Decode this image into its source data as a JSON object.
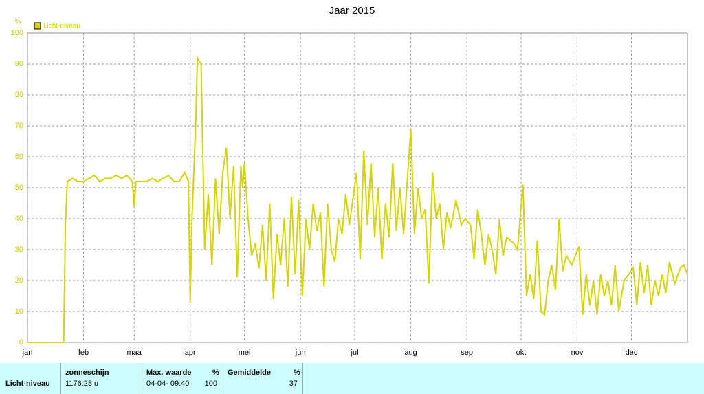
{
  "chart_data": {
    "type": "line",
    "title": "Jaar 2015",
    "y_unit_label": "%",
    "x": [
      0,
      20,
      21,
      22,
      25,
      28,
      31,
      34,
      37,
      40,
      43,
      46,
      49,
      52,
      55,
      58,
      59,
      60,
      63,
      66,
      69,
      72,
      75,
      78,
      81,
      84,
      87,
      89,
      90,
      91,
      93,
      94,
      96,
      98,
      100,
      102,
      104,
      106,
      108,
      110,
      112,
      114,
      116,
      118,
      119,
      120,
      122,
      124,
      126,
      128,
      130,
      132,
      134,
      136,
      138,
      140,
      142,
      144,
      146,
      148,
      150,
      152,
      154,
      156,
      158,
      160,
      162,
      164,
      166,
      168,
      170,
      172,
      174,
      176,
      178,
      182,
      184,
      186,
      188,
      190,
      192,
      194,
      196,
      198,
      200,
      202,
      204,
      206,
      208,
      212,
      214,
      216,
      218,
      220,
      222,
      224,
      226,
      228,
      230,
      232,
      234,
      237,
      240,
      242,
      245,
      247,
      249,
      251,
      253,
      255,
      257,
      259,
      261,
      263,
      265,
      269,
      271,
      274,
      276,
      278,
      280,
      282,
      284,
      286,
      288,
      290,
      292,
      294,
      296,
      298,
      301,
      305,
      307,
      309,
      311,
      313,
      315,
      317,
      319,
      321,
      323,
      325,
      327,
      330,
      335,
      337,
      339,
      341,
      343,
      345,
      347,
      349,
      351,
      353,
      355,
      358,
      361,
      363,
      365
    ],
    "series": [
      {
        "name": "Licht-niveau",
        "color": "#d4d400",
        "values": [
          0,
          0,
          38,
          52,
          53,
          52,
          52,
          53,
          54,
          52,
          53,
          53,
          54,
          53,
          54,
          52,
          44,
          52,
          52,
          52,
          53,
          52,
          53,
          54,
          52,
          52,
          55,
          52,
          13,
          40,
          70,
          92,
          90,
          30,
          48,
          25,
          53,
          35,
          55,
          63,
          40,
          57,
          21,
          57,
          50,
          58,
          40,
          28,
          32,
          24,
          38,
          20,
          45,
          14,
          35,
          25,
          40,
          18,
          47,
          22,
          46,
          15,
          40,
          30,
          45,
          36,
          42,
          18,
          45,
          30,
          26,
          40,
          35,
          48,
          38,
          55,
          27,
          62,
          38,
          58,
          34,
          50,
          27,
          45,
          34,
          58,
          36,
          50,
          35,
          69,
          35,
          50,
          40,
          43,
          19,
          55,
          40,
          45,
          30,
          42,
          37,
          46,
          38,
          40,
          38,
          27,
          43,
          35,
          25,
          35,
          30,
          22,
          40,
          28,
          34,
          32,
          30,
          51,
          15,
          22,
          14,
          33,
          10,
          9,
          20,
          25,
          17,
          40,
          23,
          28,
          25,
          31,
          9,
          22,
          12,
          20,
          9,
          22,
          15,
          20,
          12,
          25,
          10,
          20,
          24,
          12,
          26,
          16,
          25,
          12,
          20,
          15,
          22,
          16,
          26,
          19,
          24,
          25,
          22
        ]
      }
    ],
    "xlim": [
      0,
      365
    ],
    "xticks": [
      {
        "value": 0,
        "label": "jan"
      },
      {
        "value": 31,
        "label": "feb"
      },
      {
        "value": 59,
        "label": "maa"
      },
      {
        "value": 90,
        "label": "apr"
      },
      {
        "value": 120,
        "label": "mei"
      },
      {
        "value": 151,
        "label": "jun"
      },
      {
        "value": 181,
        "label": "jul"
      },
      {
        "value": 212,
        "label": "aug"
      },
      {
        "value": 243,
        "label": "sep"
      },
      {
        "value": 273,
        "label": "okt"
      },
      {
        "value": 304,
        "label": "nov"
      },
      {
        "value": 334,
        "label": "dec"
      }
    ],
    "ylim": [
      0,
      100
    ],
    "yticks": [
      0,
      10,
      20,
      30,
      40,
      50,
      60,
      70,
      80,
      90,
      100
    ],
    "grid": true
  },
  "table": {
    "row_label": "Licht-niveau",
    "sun": {
      "title": "zonneschijn",
      "value": "1176:28 u"
    },
    "max": {
      "title": "Max. waarde",
      "unit": "%",
      "time": "04-04- 09:40",
      "value": 100
    },
    "avg": {
      "title": "Gemiddelde",
      "unit": "%",
      "value": 37
    }
  }
}
